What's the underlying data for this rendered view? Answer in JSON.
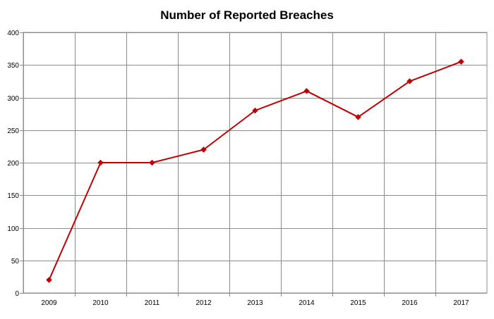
{
  "chart_data": {
    "type": "line",
    "title": "Number of Reported Breaches",
    "xlabel": "",
    "ylabel": "",
    "categories": [
      "2009",
      "2010",
      "2011",
      "2012",
      "2013",
      "2014",
      "2015",
      "2016",
      "2017"
    ],
    "series": [
      {
        "values": [
          20,
          200,
          200,
          220,
          280,
          310,
          270,
          325,
          355
        ],
        "color": "#c00000",
        "marker": "diamond"
      }
    ],
    "ylim": [
      0,
      400
    ],
    "yticks": [
      0,
      50,
      100,
      150,
      200,
      250,
      300,
      350,
      400
    ],
    "grid": true,
    "legend": "none"
  }
}
